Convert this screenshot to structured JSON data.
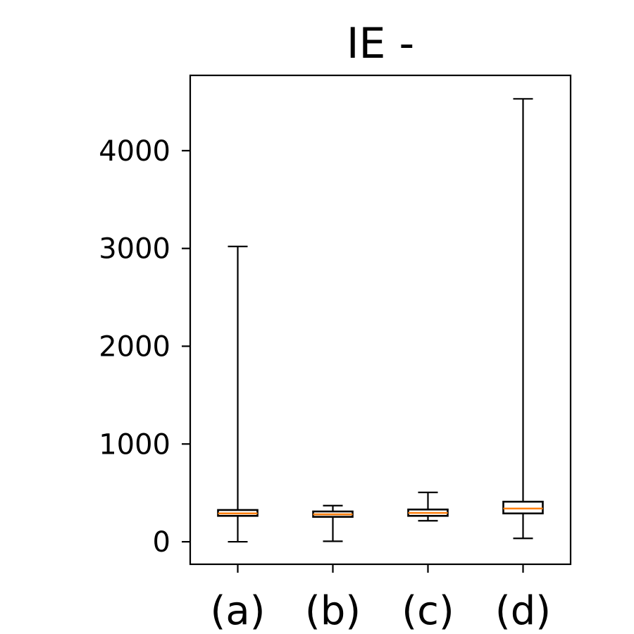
{
  "chart_data": {
    "type": "box",
    "title": "IE -",
    "xlabel": "",
    "ylabel": "",
    "ylim": [
      -230,
      4770
    ],
    "yticks": [
      0,
      1000,
      2000,
      3000,
      4000
    ],
    "categories": [
      "(a)",
      "(b)",
      "(c)",
      "(d)"
    ],
    "boxes": [
      {
        "label": "(a)",
        "whisker_low": 0,
        "q1": 265,
        "median": 290,
        "q3": 325,
        "whisker_high": 3020
      },
      {
        "label": "(b)",
        "whisker_low": 5,
        "q1": 255,
        "median": 280,
        "q3": 310,
        "whisker_high": 370
      },
      {
        "label": "(c)",
        "whisker_low": 215,
        "q1": 265,
        "median": 295,
        "q3": 330,
        "whisker_high": 505
      },
      {
        "label": "(d)",
        "whisker_low": 35,
        "q1": 290,
        "median": 340,
        "q3": 410,
        "whisker_high": 4530
      }
    ],
    "colors": {
      "box": "#000000",
      "median": "#ff7f0e"
    },
    "grid": false,
    "legend": "none"
  }
}
